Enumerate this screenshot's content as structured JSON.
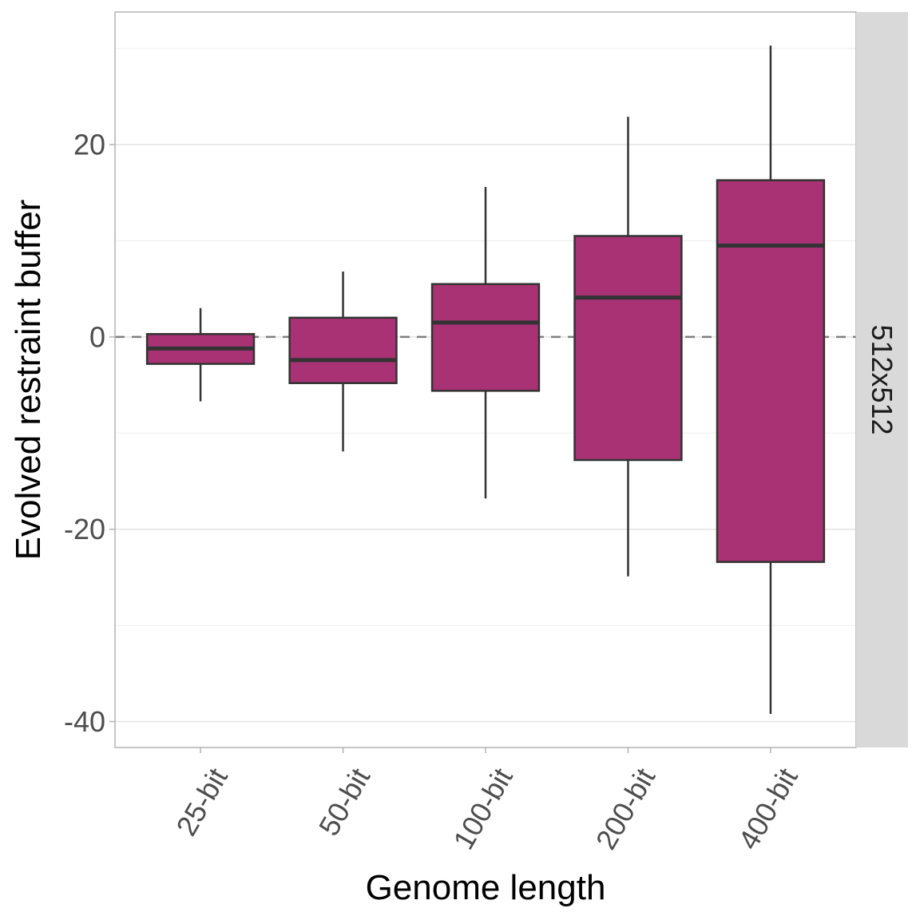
{
  "chart_data": {
    "type": "boxplot",
    "title": "",
    "xlabel": "Genome length",
    "ylabel": "Evolved restraint buffer",
    "facet_label": "512x512",
    "categories": [
      "25-bit",
      "50-bit",
      "100-bit",
      "200-bit",
      "400-bit"
    ],
    "boxes": [
      {
        "category": "25-bit",
        "whisker_low": -6.7,
        "q1": -2.8,
        "median": -1.2,
        "q3": 0.3,
        "whisker_high": 3.0
      },
      {
        "category": "50-bit",
        "whisker_low": -11.9,
        "q1": -4.8,
        "median": -2.4,
        "q3": 2.0,
        "whisker_high": 6.8
      },
      {
        "category": "100-bit",
        "whisker_low": -16.8,
        "q1": -5.6,
        "median": 1.5,
        "q3": 5.5,
        "whisker_high": 15.6
      },
      {
        "category": "200-bit",
        "whisker_low": -24.9,
        "q1": -12.8,
        "median": 4.1,
        "q3": 10.5,
        "whisker_high": 22.9
      },
      {
        "category": "400-bit",
        "whisker_low": -39.2,
        "q1": -23.4,
        "median": 9.5,
        "q3": 16.3,
        "whisker_high": 30.3
      }
    ],
    "ylim": [
      -42.7,
      33.8
    ],
    "yticks": [
      -40,
      -20,
      0,
      20
    ],
    "ytick_labels": [
      "-40",
      "-20",
      "0",
      "20"
    ],
    "minor_gridlines": [
      -30,
      -10,
      10,
      30
    ],
    "reference_line": {
      "y": 0,
      "style": "dashed"
    },
    "grid": true,
    "colors": {
      "fill": "#A83274",
      "outline": "#333333",
      "reference": "#7f7f7f",
      "strip": "#d9d9d9"
    }
  }
}
